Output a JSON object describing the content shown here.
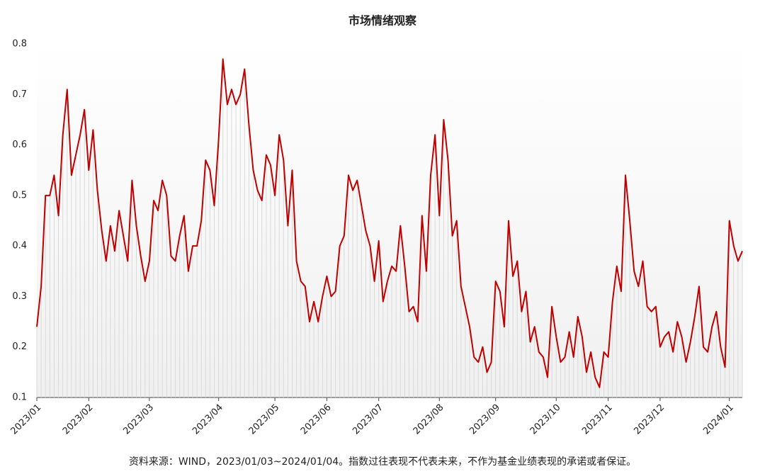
{
  "chart_data": {
    "type": "line",
    "title": "市场情绪观察",
    "source": "资料来源：WIND，2023/01/03~2024/01/04。指数过往表现不代表未来，不作为基金业绩表现的承诺或者保证。",
    "color": "#c00000",
    "drop_color": "#d9d9d9",
    "categories": [
      "2023/01",
      null,
      null,
      null,
      null,
      null,
      null,
      null,
      null,
      null,
      null,
      null,
      "2023/02",
      null,
      null,
      null,
      null,
      null,
      null,
      null,
      null,
      null,
      null,
      null,
      null,
      null,
      "2023/03",
      null,
      null,
      null,
      null,
      null,
      null,
      null,
      null,
      null,
      null,
      null,
      null,
      null,
      null,
      null,
      "2023/04",
      null,
      null,
      null,
      null,
      null,
      null,
      null,
      null,
      null,
      null,
      null,
      null,
      "2023/05",
      null,
      null,
      null,
      null,
      null,
      null,
      null,
      null,
      null,
      null,
      null,
      "2023/06",
      null,
      null,
      null,
      null,
      null,
      null,
      null,
      null,
      null,
      null,
      null,
      "2023/07",
      null,
      null,
      null,
      null,
      null,
      null,
      null,
      null,
      null,
      null,
      null,
      null,
      null,
      "2023/08",
      null,
      null,
      null,
      null,
      null,
      null,
      null,
      null,
      null,
      null,
      null,
      null,
      "2023/09",
      null,
      null,
      null,
      null,
      null,
      null,
      null,
      null,
      null,
      null,
      null,
      null,
      null,
      "2023/10",
      null,
      null,
      null,
      null,
      null,
      null,
      null,
      null,
      null,
      null,
      null,
      "2023/11",
      null,
      null,
      null,
      null,
      null,
      null,
      null,
      null,
      null,
      null,
      null,
      "2023/12",
      null,
      null,
      null,
      null,
      null,
      null,
      null,
      null,
      null,
      null,
      null,
      null,
      null,
      null,
      null,
      "2024/01",
      null,
      null,
      null
    ],
    "values": [
      0.24,
      0.32,
      0.5,
      0.5,
      0.54,
      0.46,
      0.62,
      0.71,
      0.54,
      0.58,
      0.62,
      0.67,
      0.55,
      0.63,
      0.51,
      0.43,
      0.37,
      0.44,
      0.39,
      0.47,
      0.42,
      0.37,
      0.53,
      0.44,
      0.38,
      0.33,
      0.37,
      0.49,
      0.47,
      0.53,
      0.5,
      0.38,
      0.37,
      0.42,
      0.46,
      0.35,
      0.4,
      0.4,
      0.45,
      0.57,
      0.55,
      0.48,
      0.61,
      0.77,
      0.68,
      0.71,
      0.68,
      0.7,
      0.75,
      0.64,
      0.55,
      0.51,
      0.49,
      0.58,
      0.56,
      0.5,
      0.62,
      0.57,
      0.44,
      0.55,
      0.37,
      0.33,
      0.32,
      0.25,
      0.29,
      0.25,
      0.3,
      0.34,
      0.3,
      0.31,
      0.4,
      0.42,
      0.54,
      0.51,
      0.53,
      0.48,
      0.43,
      0.4,
      0.33,
      0.41,
      0.29,
      0.33,
      0.36,
      0.35,
      0.44,
      0.36,
      0.27,
      0.28,
      0.25,
      0.46,
      0.35,
      0.54,
      0.62,
      0.46,
      0.65,
      0.57,
      0.42,
      0.45,
      0.32,
      0.28,
      0.24,
      0.18,
      0.17,
      0.2,
      0.15,
      0.17,
      0.33,
      0.31,
      0.24,
      0.45,
      0.34,
      0.37,
      0.27,
      0.31,
      0.21,
      0.24,
      0.19,
      0.18,
      0.14,
      0.28,
      0.22,
      0.17,
      0.18,
      0.23,
      0.18,
      0.26,
      0.22,
      0.15,
      0.19,
      0.14,
      0.12,
      0.19,
      0.18,
      0.29,
      0.36,
      0.31,
      0.54,
      0.45,
      0.35,
      0.32,
      0.37,
      0.28,
      0.27,
      0.28,
      0.2,
      0.22,
      0.23,
      0.19,
      0.25,
      0.22,
      0.17,
      0.21,
      0.26,
      0.32,
      0.2,
      0.19,
      0.24,
      0.27,
      0.2,
      0.16,
      0.45,
      0.4,
      0.37,
      0.39
    ],
    "ylim": [
      0.1,
      0.8
    ],
    "yticks": [
      0.1,
      0.2,
      0.3,
      0.4,
      0.5,
      0.6,
      0.7,
      0.8
    ],
    "grid": false
  }
}
